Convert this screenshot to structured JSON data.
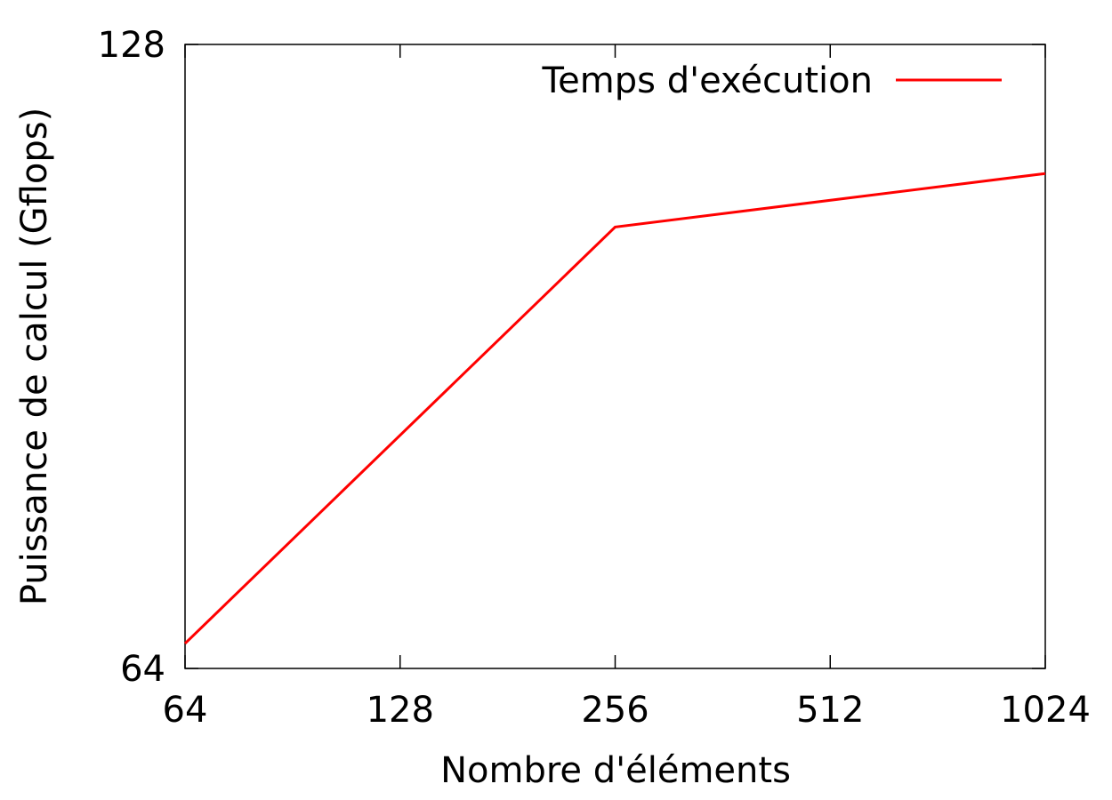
{
  "chart_data": {
    "type": "line",
    "title": "",
    "xlabel": "Nombre d'éléments",
    "ylabel": "Puissance de calcul (Gflops)",
    "x_scale": "log2",
    "y_scale": "log2",
    "xlim": [
      64,
      1024
    ],
    "ylim": [
      64,
      128
    ],
    "x_ticks": [
      "64",
      "128",
      "256",
      "512",
      "1024"
    ],
    "y_ticks": [
      "64",
      "128"
    ],
    "grid": false,
    "legend_position": "top-right",
    "series": [
      {
        "name": "Temps d'exécution",
        "color": "#ff0000",
        "x": [
          64,
          256,
          1024
        ],
        "y": [
          65.8,
          104.5,
          110.9
        ]
      }
    ]
  }
}
